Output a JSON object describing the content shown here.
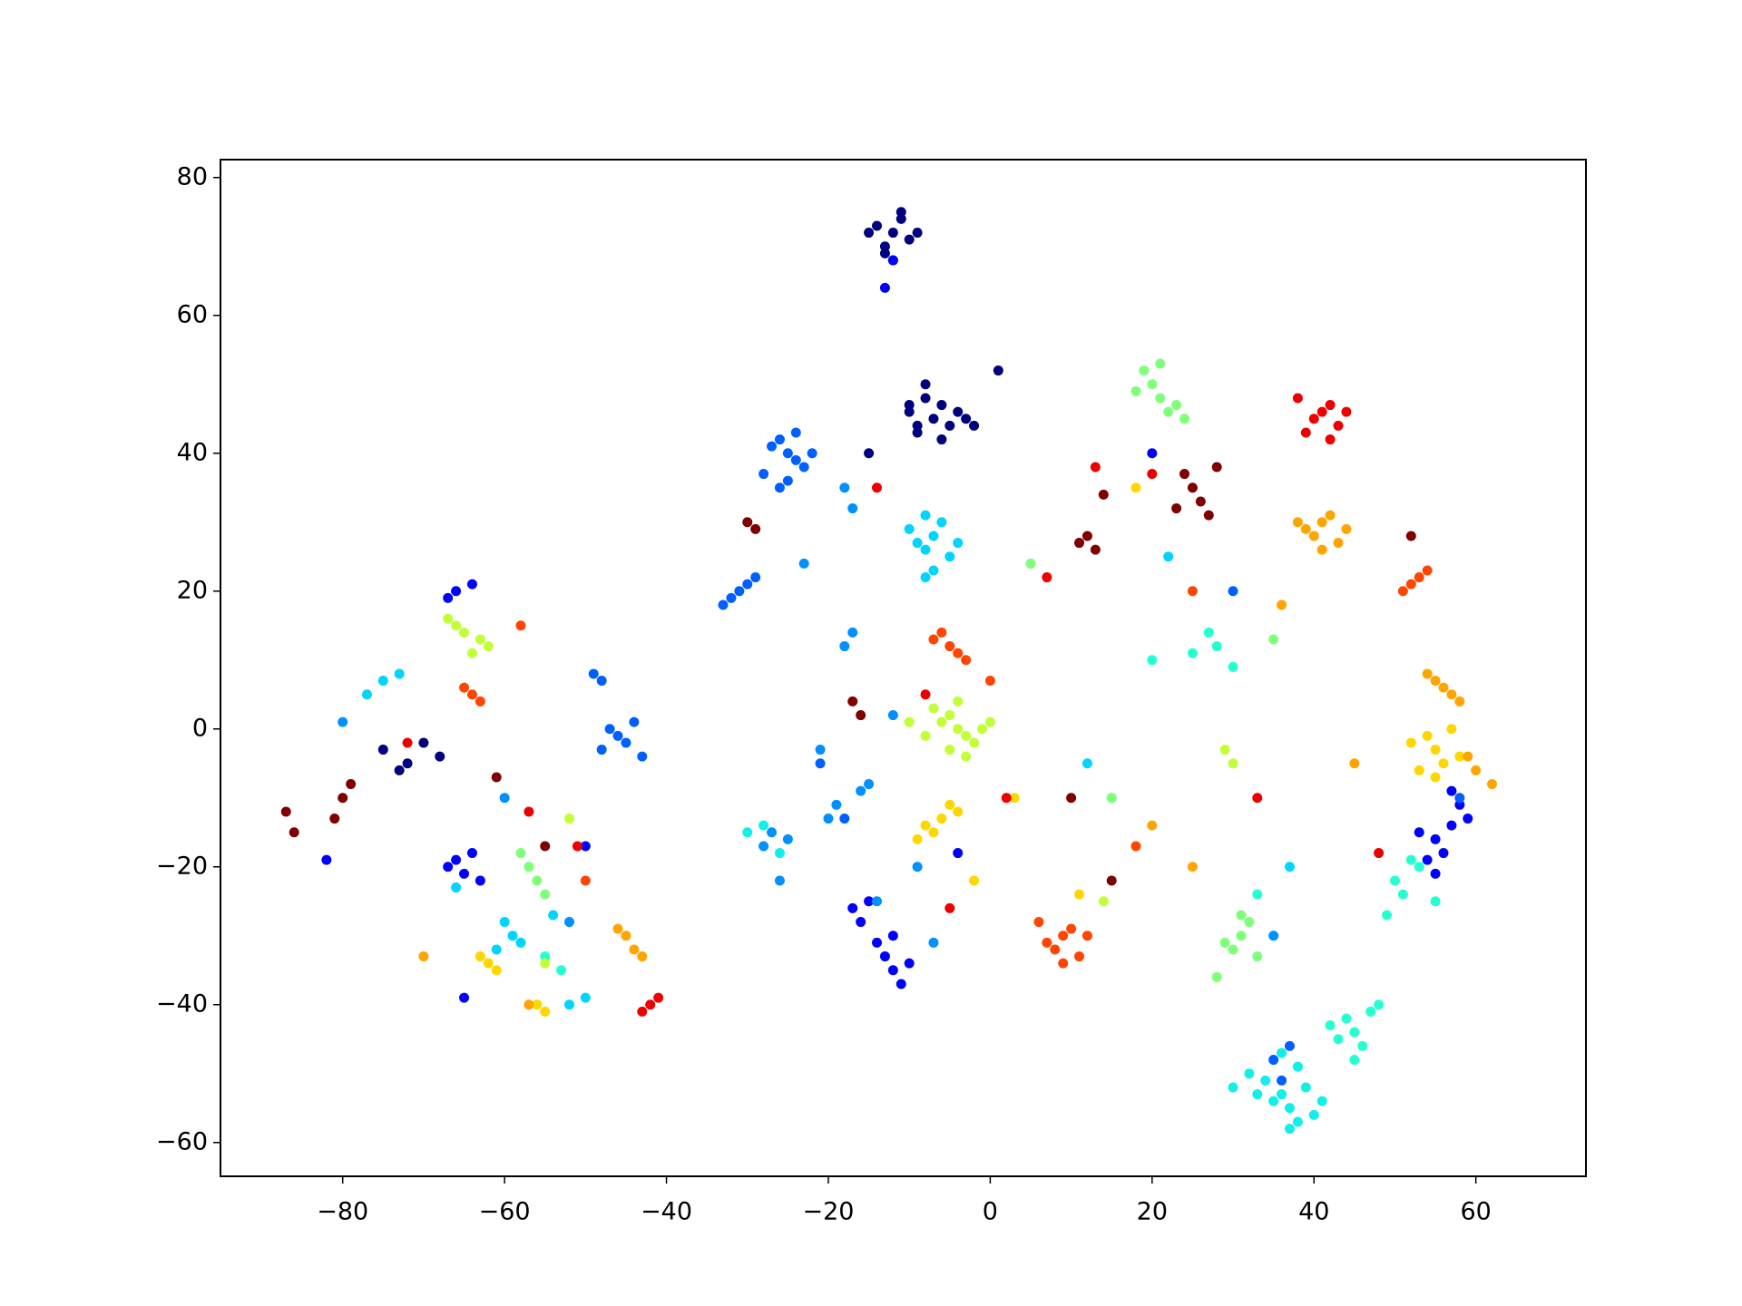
{
  "chart_data": {
    "type": "scatter",
    "xlim": [
      -95.1,
      73.6
    ],
    "ylim": [
      -64.9,
      82.6
    ],
    "xticks": [
      {
        "value": -80,
        "label": "−80"
      },
      {
        "value": -60,
        "label": "−60"
      },
      {
        "value": -40,
        "label": "−40"
      },
      {
        "value": -20,
        "label": "−20"
      },
      0,
      20,
      40,
      60
    ],
    "yticks": [
      {
        "value": -60,
        "label": "−60"
      },
      {
        "value": -40,
        "label": "−40"
      },
      {
        "value": -20,
        "label": "−20"
      },
      0,
      20,
      40,
      60,
      80
    ],
    "series": [
      {
        "color": "#00007f",
        "x": [
          -12,
          -13,
          -11,
          -10,
          -14,
          -12,
          -11,
          -9,
          -13,
          -15,
          -10,
          -8,
          -7,
          -6,
          -5,
          -4,
          -8,
          -9,
          -3,
          -6,
          -2,
          -10,
          -75,
          -72,
          -70,
          -73,
          -68,
          1,
          -15,
          -9
        ],
        "y": [
          72,
          70,
          74,
          71,
          73,
          68,
          75,
          72,
          69,
          72,
          46,
          48,
          45,
          47,
          44,
          46,
          50,
          44,
          45,
          42,
          44,
          47,
          -3,
          -5,
          -2,
          -6,
          -4,
          52,
          40,
          43
        ]
      },
      {
        "color": "#0000ff",
        "x": [
          -66,
          -65,
          -64,
          -67,
          -63,
          -12,
          -13,
          -11,
          -10,
          -12,
          -14,
          -16,
          -17,
          -15,
          55,
          56,
          57,
          58,
          54,
          53,
          59,
          57,
          55,
          -66,
          -67,
          -64,
          -12,
          -13,
          -82,
          -50,
          -65,
          20,
          -4
        ],
        "y": [
          -19,
          -21,
          -18,
          -20,
          -22,
          -35,
          -33,
          -37,
          -34,
          -30,
          -31,
          -28,
          -26,
          -25,
          -16,
          -18,
          -14,
          -11,
          -19,
          -15,
          -13,
          -9,
          -21,
          20,
          19,
          21,
          68,
          64,
          -19,
          -17,
          -39,
          40,
          -18
        ]
      },
      {
        "color": "#0060ff",
        "x": [
          -25,
          -26,
          -24,
          -27,
          -23,
          -22,
          -28,
          -31,
          -32,
          -30,
          -33,
          -29,
          -46,
          -47,
          -45,
          -44,
          -48,
          -43,
          -49,
          -48,
          -25,
          -26,
          -21,
          35,
          37,
          36,
          -24,
          58,
          30,
          -18
        ],
        "y": [
          40,
          42,
          39,
          41,
          38,
          40,
          37,
          20,
          19,
          21,
          18,
          22,
          -1,
          0,
          -2,
          1,
          -3,
          -4,
          8,
          7,
          36,
          35,
          -5,
          -48,
          -46,
          -51,
          43,
          -10,
          20,
          -13
        ]
      },
      {
        "color": "#0090ff",
        "x": [
          -16,
          -18,
          -17,
          -19,
          -20,
          -15,
          -28,
          -27,
          -25,
          -26,
          -17,
          -18,
          -12,
          -14,
          -80,
          -52,
          -60,
          -21,
          -9,
          -7,
          -23,
          35
        ],
        "y": [
          -9,
          12,
          14,
          -11,
          -13,
          -8,
          -17,
          -15,
          -16,
          -22,
          32,
          35,
          2,
          -25,
          1,
          -28,
          -10,
          -3,
          -20,
          -31,
          24,
          -30
        ]
      },
      {
        "color": "#00d4ff",
        "x": [
          -7,
          -8,
          -6,
          -9,
          -5,
          -10,
          -7,
          -8,
          -4,
          -75,
          -77,
          -73,
          -59,
          -60,
          -61,
          -58,
          -54,
          -52,
          -8,
          22,
          37,
          -50,
          12,
          -66
        ],
        "y": [
          28,
          26,
          30,
          27,
          25,
          29,
          23,
          31,
          27,
          7,
          5,
          8,
          -30,
          -28,
          -32,
          -31,
          -27,
          -40,
          22,
          25,
          -20,
          -39,
          -5,
          -23
        ]
      },
      {
        "color": "#10f0e8",
        "x": [
          37,
          36,
          38,
          39,
          35,
          34,
          40,
          33,
          32,
          37,
          38,
          41,
          36,
          30,
          -30,
          -28,
          -26
        ],
        "y": [
          -55,
          -53,
          -57,
          -52,
          -54,
          -51,
          -56,
          -53,
          -50,
          -58,
          -49,
          -54,
          -47,
          -52,
          -15,
          -14,
          -18
        ]
      },
      {
        "color": "#26ffd1",
        "x": [
          45,
          44,
          46,
          47,
          43,
          42,
          48,
          45,
          50,
          51,
          53,
          55,
          52,
          49,
          28,
          25,
          27,
          30,
          33,
          -55,
          -53,
          20,
          15
        ],
        "y": [
          -44,
          -42,
          -46,
          -41,
          -45,
          -43,
          -40,
          -48,
          -22,
          -24,
          -20,
          -25,
          -19,
          -27,
          12,
          11,
          14,
          9,
          -24,
          -33,
          -35,
          10,
          -10
        ]
      },
      {
        "color": "#7fff7a",
        "x": [
          21,
          20,
          22,
          19,
          23,
          18,
          21,
          24,
          31,
          30,
          32,
          29,
          33,
          31,
          28,
          -57,
          -56,
          -58,
          -55,
          35,
          15,
          5
        ],
        "y": [
          48,
          50,
          46,
          52,
          47,
          49,
          53,
          45,
          -30,
          -32,
          -28,
          -31,
          -33,
          -27,
          -36,
          -20,
          -22,
          -18,
          -24,
          13,
          -10,
          24
        ]
      },
      {
        "color": "#c1ff36",
        "x": [
          -4,
          -5,
          -3,
          -6,
          -2,
          -7,
          -1,
          -5,
          -8,
          0,
          -4,
          -3,
          -63,
          -65,
          -62,
          -66,
          -67,
          -64,
          -52,
          -55,
          14,
          30,
          -10,
          29
        ],
        "y": [
          0,
          2,
          -1,
          1,
          -2,
          3,
          0,
          -3,
          -1,
          1,
          4,
          -4,
          13,
          14,
          12,
          15,
          16,
          11,
          -13,
          -34,
          -25,
          -5,
          1,
          -3
        ]
      },
      {
        "color": "#ffd700",
        "x": [
          -6,
          -7,
          -5,
          -8,
          -4,
          -9,
          -2,
          55,
          54,
          56,
          57,
          53,
          52,
          58,
          55,
          -62,
          -63,
          -61,
          -56,
          -55,
          18,
          11,
          3
        ],
        "y": [
          -13,
          -15,
          -11,
          -14,
          -12,
          -16,
          -22,
          -3,
          -1,
          -5,
          0,
          -6,
          -2,
          -4,
          -7,
          -34,
          -33,
          -35,
          -40,
          -41,
          35,
          -24,
          -10
        ]
      },
      {
        "color": "#ffa500",
        "x": [
          41,
          40,
          42,
          39,
          43,
          38,
          44,
          41,
          56,
          57,
          55,
          58,
          54,
          59,
          60,
          62,
          -45,
          -44,
          -46,
          -43,
          -70,
          -57,
          25,
          36,
          20,
          45
        ],
        "y": [
          30,
          28,
          31,
          29,
          27,
          30,
          29,
          26,
          6,
          5,
          7,
          4,
          8,
          -4,
          -6,
          -8,
          -30,
          -32,
          -29,
          -33,
          -33,
          -40,
          -20,
          18,
          -14,
          -5
        ]
      },
      {
        "color": "#ff4500",
        "x": [
          9,
          8,
          10,
          7,
          11,
          6,
          12,
          9,
          -5,
          -6,
          -4,
          -7,
          -3,
          52,
          53,
          51,
          54,
          -64,
          -65,
          -63,
          -58,
          25,
          18,
          0,
          -50
        ],
        "y": [
          -30,
          -32,
          -29,
          -31,
          -33,
          -28,
          -30,
          -34,
          12,
          14,
          11,
          13,
          10,
          21,
          22,
          20,
          23,
          5,
          6,
          4,
          15,
          20,
          -17,
          7,
          -22
        ]
      },
      {
        "color": "#ee0000",
        "x": [
          41,
          40,
          42,
          39,
          43,
          38,
          44,
          42,
          -42,
          -41,
          -43,
          13,
          2,
          -14,
          -5,
          20,
          33,
          -72,
          -57,
          -51,
          7,
          48,
          -8
        ],
        "y": [
          46,
          45,
          47,
          43,
          44,
          48,
          46,
          42,
          -40,
          -39,
          -41,
          38,
          -10,
          35,
          -26,
          37,
          -10,
          -2,
          -12,
          -17,
          22,
          -18,
          5
        ]
      },
      {
        "color": "#7f0000",
        "x": [
          25,
          26,
          24,
          27,
          28,
          23,
          12,
          13,
          11,
          14,
          -80,
          -81,
          -79,
          -87,
          -86,
          -30,
          -29,
          -17,
          -16,
          10,
          52,
          15,
          -55,
          -61
        ],
        "y": [
          35,
          33,
          37,
          31,
          38,
          32,
          28,
          26,
          27,
          34,
          -10,
          -13,
          -8,
          -12,
          -15,
          30,
          29,
          4,
          2,
          -10,
          28,
          -22,
          -17,
          -7
        ]
      }
    ]
  }
}
